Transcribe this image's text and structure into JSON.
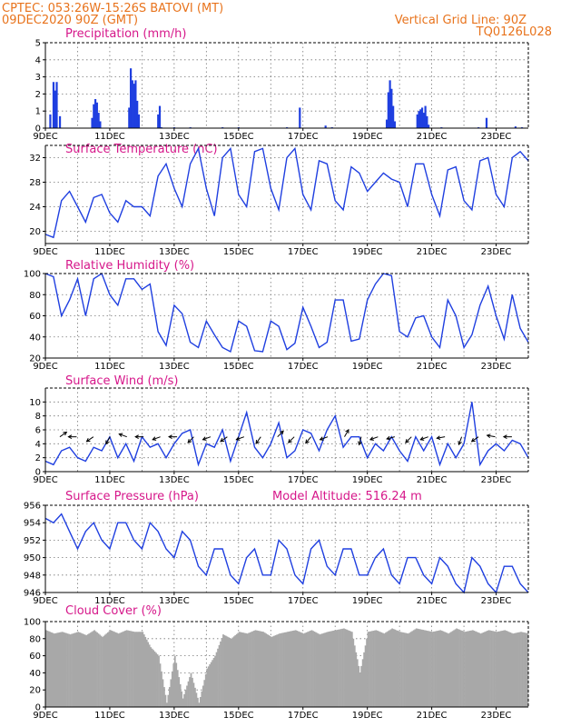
{
  "header": {
    "line1_left": "CPTEC:   053:26W-15:26S   BATOVI (MT)",
    "line2_left": "09DEC2020 90Z (GMT)",
    "line1_right": "Vertical Grid Line: 90Z",
    "line2_right": "TQ0126L028"
  },
  "colors": {
    "header": "#e8731c",
    "title": "#d6178a",
    "series": "#1f3fe0",
    "cloud": "#a8a8a8",
    "arrow": "#000000"
  },
  "chart_data": [
    {
      "type": "bar",
      "title": "Precipitation (mm/h)",
      "x_tick_labels": [
        "9DEC",
        "11DEC",
        "13DEC",
        "15DEC",
        "17DEC",
        "19DEC",
        "21DEC",
        "23DEC"
      ],
      "ylim": [
        0,
        5
      ],
      "y_ticks": [
        0,
        1,
        2,
        3,
        4,
        5
      ],
      "bars": [
        [
          0.15,
          0.8
        ],
        [
          0.25,
          2.7
        ],
        [
          0.3,
          2.2
        ],
        [
          0.35,
          2.7
        ],
        [
          0.45,
          0.7
        ],
        [
          1.45,
          0.6
        ],
        [
          1.5,
          1.4
        ],
        [
          1.55,
          1.7
        ],
        [
          1.6,
          1.5
        ],
        [
          1.65,
          0.9
        ],
        [
          1.7,
          0.4
        ],
        [
          2.6,
          1.2
        ],
        [
          2.65,
          3.5
        ],
        [
          2.7,
          2.8
        ],
        [
          2.75,
          2.6
        ],
        [
          2.8,
          2.8
        ],
        [
          2.85,
          1.6
        ],
        [
          2.9,
          0.8
        ],
        [
          3.5,
          0.8
        ],
        [
          3.55,
          1.3
        ],
        [
          3.6,
          0.05
        ],
        [
          4.0,
          0.05
        ],
        [
          4.5,
          0.05
        ],
        [
          5.5,
          0.05
        ],
        [
          6.0,
          0.05
        ],
        [
          7.5,
          0.05
        ],
        [
          7.9,
          1.2
        ],
        [
          8.7,
          0.15
        ],
        [
          8.9,
          0.05
        ],
        [
          10.6,
          0.5
        ],
        [
          10.65,
          2.1
        ],
        [
          10.7,
          2.8
        ],
        [
          10.75,
          2.3
        ],
        [
          10.8,
          1.3
        ],
        [
          10.85,
          0.4
        ],
        [
          11.55,
          0.8
        ],
        [
          11.6,
          1.0
        ],
        [
          11.65,
          1.1
        ],
        [
          11.7,
          1.2
        ],
        [
          11.75,
          0.9
        ],
        [
          11.8,
          1.3
        ],
        [
          11.85,
          0.7
        ],
        [
          11.9,
          0.2
        ],
        [
          12.3,
          0.05
        ],
        [
          13.45,
          0.05
        ],
        [
          13.7,
          0.6
        ],
        [
          14.6,
          0.1
        ],
        [
          14.8,
          0.05
        ]
      ]
    },
    {
      "type": "line",
      "title": "Surface Temperature (nC)",
      "x_tick_labels": [
        "9DEC",
        "11DEC",
        "13DEC",
        "15DEC",
        "17DEC",
        "19DEC",
        "21DEC",
        "23DEC"
      ],
      "ylim": [
        18,
        34
      ],
      "y_ticks": [
        20,
        24,
        28,
        32
      ],
      "x": [
        0,
        0.25,
        0.5,
        0.75,
        1,
        1.25,
        1.5,
        1.75,
        2,
        2.25,
        2.5,
        2.75,
        3,
        3.25,
        3.5,
        3.75,
        4,
        4.25,
        4.5,
        4.75,
        5,
        5.25,
        5.5,
        5.75,
        6,
        6.25,
        6.5,
        6.75,
        7,
        7.25,
        7.5,
        7.75,
        8,
        8.25,
        8.5,
        8.75,
        9,
        9.25,
        9.5,
        9.75,
        10,
        10.25,
        10.5,
        10.75,
        11,
        11.25,
        11.5,
        11.75,
        12,
        12.25,
        12.5,
        12.75,
        13,
        13.25,
        13.5,
        13.75,
        14,
        14.25,
        14.5,
        14.75,
        15
      ],
      "y": [
        19.5,
        19,
        25,
        26.5,
        24,
        21.5,
        25.5,
        26,
        23,
        21.5,
        25,
        24,
        24,
        22.5,
        29,
        31,
        27,
        24,
        31,
        33.5,
        27,
        22.5,
        32,
        33.5,
        26,
        24,
        33,
        33.5,
        27,
        23.5,
        32,
        33.5,
        26,
        23.5,
        31.5,
        31,
        25,
        23.5,
        30.5,
        29.5,
        26.5,
        28,
        29.5,
        28.5,
        28,
        24,
        31,
        31,
        26,
        22.5,
        30,
        30.5,
        25,
        23.5,
        31.5,
        32,
        26,
        24,
        32,
        33,
        31.5
      ]
    },
    {
      "type": "line",
      "title": "Relative Humidity (%)",
      "x_tick_labels": [
        "9DEC",
        "11DEC",
        "13DEC",
        "15DEC",
        "17DEC",
        "19DEC",
        "21DEC",
        "23DEC"
      ],
      "ylim": [
        20,
        100
      ],
      "y_ticks": [
        20,
        40,
        60,
        80,
        100
      ],
      "x": [
        0,
        0.25,
        0.5,
        0.75,
        1,
        1.25,
        1.5,
        1.75,
        2,
        2.25,
        2.5,
        2.75,
        3,
        3.25,
        3.5,
        3.75,
        4,
        4.25,
        4.5,
        4.75,
        5,
        5.25,
        5.5,
        5.75,
        6,
        6.25,
        6.5,
        6.75,
        7,
        7.25,
        7.5,
        7.75,
        8,
        8.25,
        8.5,
        8.75,
        9,
        9.25,
        9.5,
        9.75,
        10,
        10.25,
        10.5,
        10.75,
        11,
        11.25,
        11.5,
        11.75,
        12,
        12.25,
        12.5,
        12.75,
        13,
        13.25,
        13.5,
        13.75,
        14,
        14.25,
        14.5,
        14.75,
        15
      ],
      "y": [
        100,
        97,
        60,
        75,
        95,
        60,
        95,
        100,
        80,
        70,
        95,
        95,
        85,
        90,
        45,
        32,
        70,
        62,
        35,
        30,
        55,
        42,
        30,
        26,
        55,
        50,
        27,
        26,
        55,
        50,
        28,
        34,
        68,
        50,
        30,
        35,
        75,
        75,
        36,
        38,
        75,
        90,
        100,
        98,
        45,
        40,
        58,
        60,
        40,
        30,
        75,
        60,
        30,
        42,
        70,
        88,
        60,
        38,
        80,
        48,
        35
      ]
    },
    {
      "type": "line",
      "title": "Surface Wind (m/s)",
      "x_tick_labels": [
        "9DEC",
        "11DEC",
        "13DEC",
        "15DEC",
        "17DEC",
        "19DEC",
        "21DEC",
        "23DEC"
      ],
      "ylim": [
        0,
        12
      ],
      "y_ticks": [
        0,
        2,
        4,
        6,
        8,
        10
      ],
      "x": [
        0,
        0.25,
        0.5,
        0.75,
        1,
        1.25,
        1.5,
        1.75,
        2,
        2.25,
        2.5,
        2.75,
        3,
        3.25,
        3.5,
        3.75,
        4,
        4.25,
        4.5,
        4.75,
        5,
        5.25,
        5.5,
        5.75,
        6,
        6.25,
        6.5,
        6.75,
        7,
        7.25,
        7.5,
        7.75,
        8,
        8.25,
        8.5,
        8.75,
        9,
        9.25,
        9.5,
        9.75,
        10,
        10.25,
        10.5,
        10.75,
        11,
        11.25,
        11.5,
        11.75,
        12,
        12.25,
        12.5,
        12.75,
        13,
        13.25,
        13.5,
        13.75,
        14,
        14.25,
        14.5,
        14.75,
        15
      ],
      "y": [
        1.5,
        1,
        3,
        3.5,
        2,
        1.5,
        3.5,
        3,
        5,
        2,
        4,
        1.5,
        5,
        3.5,
        4,
        2,
        4,
        5.5,
        6,
        1,
        4,
        3.5,
        6,
        1.5,
        5,
        8.5,
        3.5,
        2,
        4,
        7,
        2,
        3,
        6,
        5.5,
        3,
        6,
        8,
        3.5,
        5,
        5,
        2,
        4,
        3,
        5,
        3,
        1.5,
        5,
        3,
        5,
        1,
        4,
        2,
        4,
        10,
        1,
        3,
        4,
        3,
        4.5,
        4,
        2
      ]
    },
    {
      "type": "line",
      "title": "Surface Pressure (hPa)",
      "annotation": "Model Altitude: 516.24  m",
      "x_tick_labels": [
        "9DEC",
        "11DEC",
        "13DEC",
        "15DEC",
        "17DEC",
        "19DEC",
        "21DEC",
        "23DEC"
      ],
      "ylim": [
        946,
        956
      ],
      "y_ticks": [
        946,
        948,
        950,
        952,
        954,
        956
      ],
      "x": [
        0,
        0.25,
        0.5,
        0.75,
        1,
        1.25,
        1.5,
        1.75,
        2,
        2.25,
        2.5,
        2.75,
        3,
        3.25,
        3.5,
        3.75,
        4,
        4.25,
        4.5,
        4.75,
        5,
        5.25,
        5.5,
        5.75,
        6,
        6.25,
        6.5,
        6.75,
        7,
        7.25,
        7.5,
        7.75,
        8,
        8.25,
        8.5,
        8.75,
        9,
        9.25,
        9.5,
        9.75,
        10,
        10.25,
        10.5,
        10.75,
        11,
        11.25,
        11.5,
        11.75,
        12,
        12.25,
        12.5,
        12.75,
        13,
        13.25,
        13.5,
        13.75,
        14,
        14.25,
        14.5,
        14.75,
        15
      ],
      "y": [
        954.5,
        954,
        955,
        953,
        951,
        953,
        954,
        952,
        951,
        954,
        954,
        952,
        951,
        954,
        953,
        951,
        950,
        953,
        952,
        949,
        948,
        951,
        951,
        948,
        947,
        950,
        951,
        948,
        948,
        952,
        951,
        948,
        947,
        951,
        952,
        949,
        948,
        951,
        951,
        948,
        948,
        950,
        951,
        948,
        947,
        950,
        950,
        948,
        947,
        950,
        949,
        947,
        946,
        950,
        949,
        947,
        946,
        949,
        949,
        947,
        946
      ]
    },
    {
      "type": "bar",
      "title": "Cloud Cover (%)",
      "x_tick_labels": [
        "9DEC",
        "11DEC",
        "13DEC",
        "15DEC",
        "17DEC",
        "19DEC",
        "21DEC",
        "23DEC"
      ],
      "ylim": [
        0,
        100
      ],
      "y_ticks": [
        0,
        20,
        40,
        60,
        80,
        100
      ],
      "x": [
        0,
        0.25,
        0.5,
        0.75,
        1,
        1.25,
        1.5,
        1.75,
        2,
        2.25,
        2.5,
        2.75,
        3,
        3.25,
        3.5,
        3.75,
        4,
        4.25,
        4.5,
        4.75,
        5,
        5.25,
        5.5,
        5.75,
        6,
        6.25,
        6.5,
        6.75,
        7,
        7.25,
        7.5,
        7.75,
        8,
        8.25,
        8.5,
        8.75,
        9,
        9.25,
        9.5,
        9.75,
        10,
        10.25,
        10.5,
        10.75,
        11,
        11.25,
        11.5,
        11.75,
        12,
        12.25,
        12.5,
        12.75,
        13,
        13.25,
        13.5,
        13.75,
        14,
        14.25,
        14.5,
        14.75,
        15
      ],
      "y": [
        90,
        86,
        88,
        85,
        88,
        84,
        90,
        82,
        90,
        86,
        90,
        88,
        88,
        70,
        60,
        5,
        60,
        10,
        40,
        5,
        45,
        60,
        85,
        80,
        88,
        86,
        90,
        88,
        82,
        86,
        88,
        90,
        86,
        90,
        85,
        88,
        90,
        92,
        88,
        40,
        88,
        90,
        86,
        92,
        88,
        86,
        92,
        90,
        88,
        90,
        86,
        92,
        88,
        90,
        86,
        90,
        88,
        90,
        86,
        88,
        86
      ]
    }
  ]
}
